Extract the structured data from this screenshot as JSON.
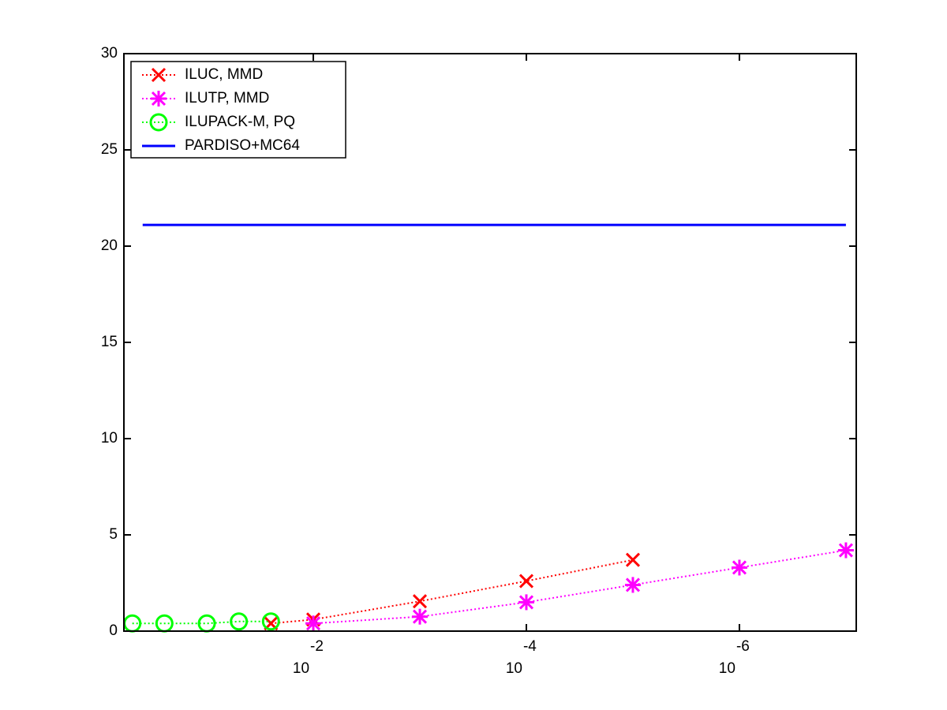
{
  "chart_data": {
    "type": "line",
    "xscale": "log",
    "xlim": [
      0.6,
      8e-08
    ],
    "xticks": [
      {
        "value": 0.01,
        "label": "10",
        "exponent": "-2"
      },
      {
        "value": 0.0001,
        "label": "10",
        "exponent": "-4"
      },
      {
        "value": 1e-06,
        "label": "10",
        "exponent": "-6"
      }
    ],
    "ylim": [
      0,
      30
    ],
    "yticks": [
      0,
      5,
      10,
      15,
      20,
      25,
      30
    ],
    "legend": "upper-left",
    "series": [
      {
        "name": "ILUC, MMD",
        "color": "#ff0000",
        "marker": "x",
        "linestyle": "dotted",
        "x": [
          0.025,
          0.01,
          0.001,
          0.0001,
          1e-05
        ],
        "values": [
          0.4,
          0.6,
          1.55,
          2.6,
          3.7
        ]
      },
      {
        "name": "ILUTP, MMD",
        "color": "#ff00ff",
        "marker": "star",
        "linestyle": "dotted",
        "x": [
          0.01,
          0.001,
          0.0001,
          1e-05,
          1e-06,
          1e-07
        ],
        "values": [
          0.4,
          0.75,
          1.5,
          2.4,
          3.3,
          4.2
        ]
      },
      {
        "name": "ILUPACK-M, PQ",
        "color": "#00ff00",
        "marker": "circle",
        "linestyle": "dotted",
        "x": [
          0.5,
          0.25,
          0.1,
          0.05,
          0.025
        ],
        "values": [
          0.4,
          0.4,
          0.4,
          0.5,
          0.5
        ]
      },
      {
        "name": "PARDISO+MC64",
        "color": "#0000ff",
        "marker": "none",
        "linestyle": "solid",
        "x": [
          0.4,
          1e-07
        ],
        "values": [
          21.1,
          21.1
        ]
      }
    ]
  }
}
